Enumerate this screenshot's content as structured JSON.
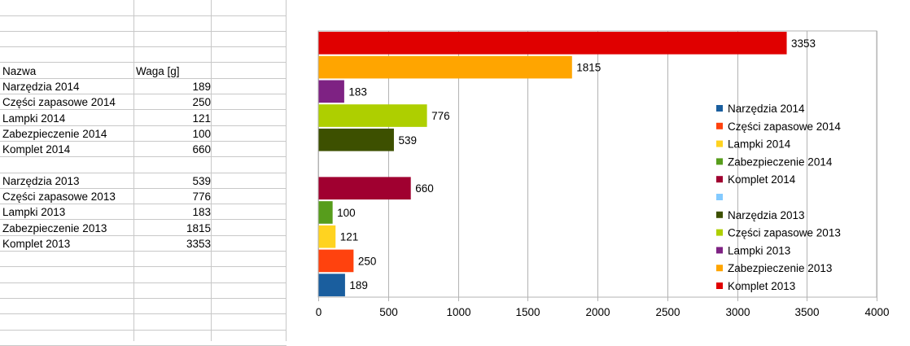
{
  "sheet": {
    "headers": {
      "name": "Nazwa",
      "weight": "Waga [g]"
    },
    "rows_2014": [
      {
        "name": "Narzędzia 2014",
        "value": "189"
      },
      {
        "name": "Części zapasowe 2014",
        "value": "250"
      },
      {
        "name": "Lampki 2014",
        "value": "121"
      },
      {
        "name": "Zabezpieczenie 2014",
        "value": "100"
      },
      {
        "name": "Komplet 2014",
        "value": "660"
      }
    ],
    "rows_2013": [
      {
        "name": "Narzędzia 2013",
        "value": "539"
      },
      {
        "name": "Części zapasowe 2013",
        "value": "776"
      },
      {
        "name": "Lampki 2013",
        "value": "183"
      },
      {
        "name": "Zabezpieczenie 2013",
        "value": "1815"
      },
      {
        "name": "Komplet 2013",
        "value": "3353"
      }
    ]
  },
  "chart_data": {
    "type": "bar",
    "orientation": "horizontal",
    "title": "",
    "xlabel": "",
    "ylabel": "",
    "xlim": [
      0,
      4000
    ],
    "xticks": [
      0,
      500,
      1000,
      1500,
      2000,
      2500,
      3000,
      3500,
      4000
    ],
    "grid": true,
    "legend_position": "right",
    "bars_bottom_to_top": [
      {
        "name": "Narzędzia 2014",
        "value": 189,
        "color": "#1a5e9e"
      },
      {
        "name": "Części zapasowe 2014",
        "value": 250,
        "color": "#ff420e"
      },
      {
        "name": "Lampki 2014",
        "value": 121,
        "color": "#ffd320"
      },
      {
        "name": "Zabezpieczenie 2014",
        "value": 100,
        "color": "#579d1c"
      },
      {
        "name": "Komplet 2014",
        "value": 660,
        "color": "#a00030"
      },
      {
        "name": "",
        "value": null,
        "color": "#83caff"
      },
      {
        "name": "Narzędzia 2013",
        "value": 539,
        "color": "#3d5000"
      },
      {
        "name": "Części zapasowe 2013",
        "value": 776,
        "color": "#aecf00"
      },
      {
        "name": "Lampki 2013",
        "value": 183,
        "color": "#7e2283"
      },
      {
        "name": "Zabezpieczenie 2013",
        "value": 1815,
        "color": "#ffa500"
      },
      {
        "name": "Komplet 2013",
        "value": 3353,
        "color": "#e00000"
      }
    ]
  }
}
